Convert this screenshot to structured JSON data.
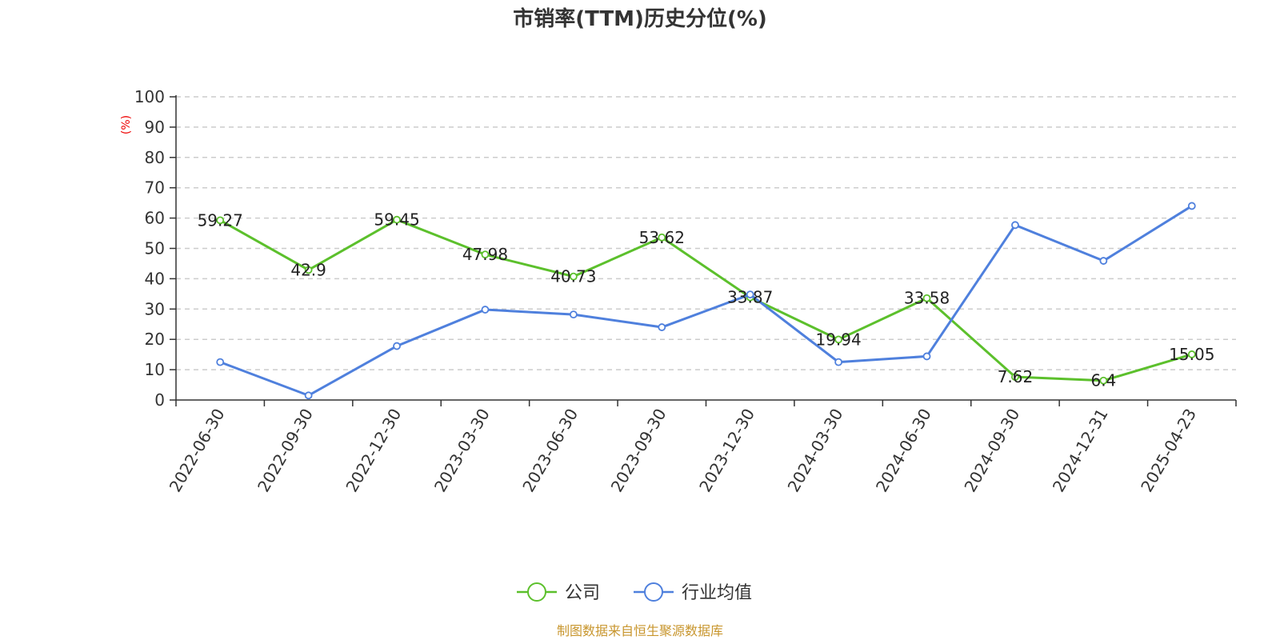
{
  "chart_data": {
    "type": "line",
    "title": "市销率(TTM)历史分位(%)",
    "ylabel": "(%)",
    "xlabel": "",
    "ylim": [
      0,
      100
    ],
    "yticks": [
      0,
      10,
      20,
      30,
      40,
      50,
      60,
      70,
      80,
      90,
      100
    ],
    "grid": true,
    "legend_position": "bottom-center",
    "categories": [
      "2022-06-30",
      "2022-09-30",
      "2022-12-30",
      "2023-03-30",
      "2023-06-30",
      "2023-09-30",
      "2023-12-30",
      "2024-03-30",
      "2024-06-30",
      "2024-09-30",
      "2024-12-31",
      "2025-04-23"
    ],
    "series": [
      {
        "name": "公司",
        "color": "#5cc02c",
        "show_labels": true,
        "values": [
          59.27,
          42.9,
          59.45,
          47.98,
          40.73,
          53.62,
          33.87,
          19.94,
          33.58,
          7.62,
          6.4,
          15.05
        ]
      },
      {
        "name": "行业均值",
        "color": "#4f80dd",
        "show_labels": false,
        "values": [
          12.5,
          1.5,
          17.8,
          29.8,
          28.2,
          24.0,
          34.8,
          12.5,
          14.4,
          57.7,
          45.9,
          64.0
        ]
      }
    ],
    "source": "制图数据来自恒生聚源数据库"
  }
}
